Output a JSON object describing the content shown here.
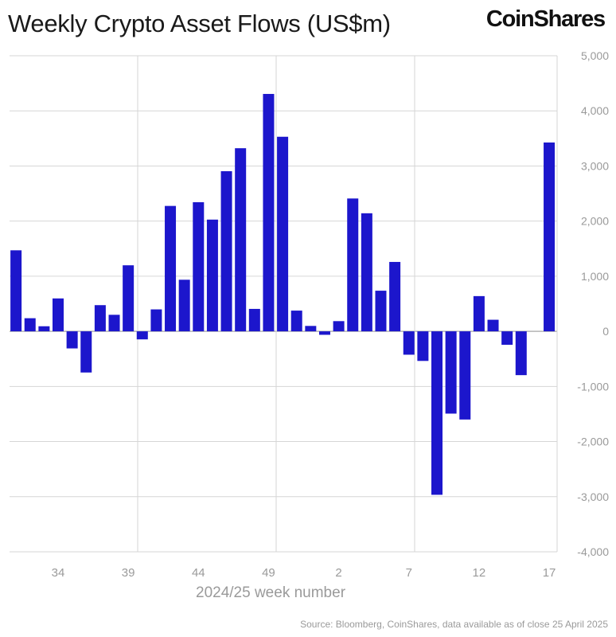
{
  "header": {
    "title": "Weekly Crypto Asset Flows (US$m)",
    "logo": "CoinShares"
  },
  "footer": {
    "source": "Source: Bloomberg, CoinShares, data available as of close 25 April 2025"
  },
  "chart_data": {
    "type": "bar",
    "title": "Weekly Crypto Asset Flows (US$m)",
    "xlabel": "2024/25 week number",
    "ylabel": "",
    "ylim": [
      -4000,
      5000
    ],
    "yticks": [
      5000,
      4000,
      3000,
      2000,
      1000,
      0,
      -1000,
      -2000,
      -3000,
      -4000
    ],
    "ytick_labels": [
      "5,000",
      "4,000",
      "3,000",
      "2,000",
      "1,000",
      "0",
      "-1,000",
      "-2,000",
      "-3,000",
      "-4,000"
    ],
    "xtick_labels": [
      "34",
      "39",
      "44",
      "49",
      "2",
      "7",
      "12",
      "17"
    ],
    "y_axis_position": "right",
    "grid": true,
    "bar_color": "#1c16cc",
    "categories": [
      "31",
      "32",
      "33",
      "34",
      "35",
      "36",
      "37",
      "38",
      "39",
      "40",
      "41",
      "42",
      "43",
      "44",
      "45",
      "46",
      "47",
      "48",
      "49",
      "50",
      "51",
      "52",
      "1",
      "2",
      "3",
      "4",
      "5",
      "6",
      "7",
      "8",
      "9",
      "10",
      "11",
      "12",
      "13",
      "14",
      "15",
      "16",
      "17"
    ],
    "values": [
      1470,
      238,
      92,
      597,
      -310,
      -747,
      475,
      300,
      1198,
      -146,
      398,
      2275,
      936,
      2343,
      2027,
      2905,
      3322,
      407,
      4307,
      3530,
      376,
      98,
      -63,
      185,
      2410,
      2142,
      737,
      1259,
      -424,
      -537,
      -2966,
      -1493,
      -1600,
      639,
      210,
      -244,
      -795,
      0,
      3426
    ]
  }
}
